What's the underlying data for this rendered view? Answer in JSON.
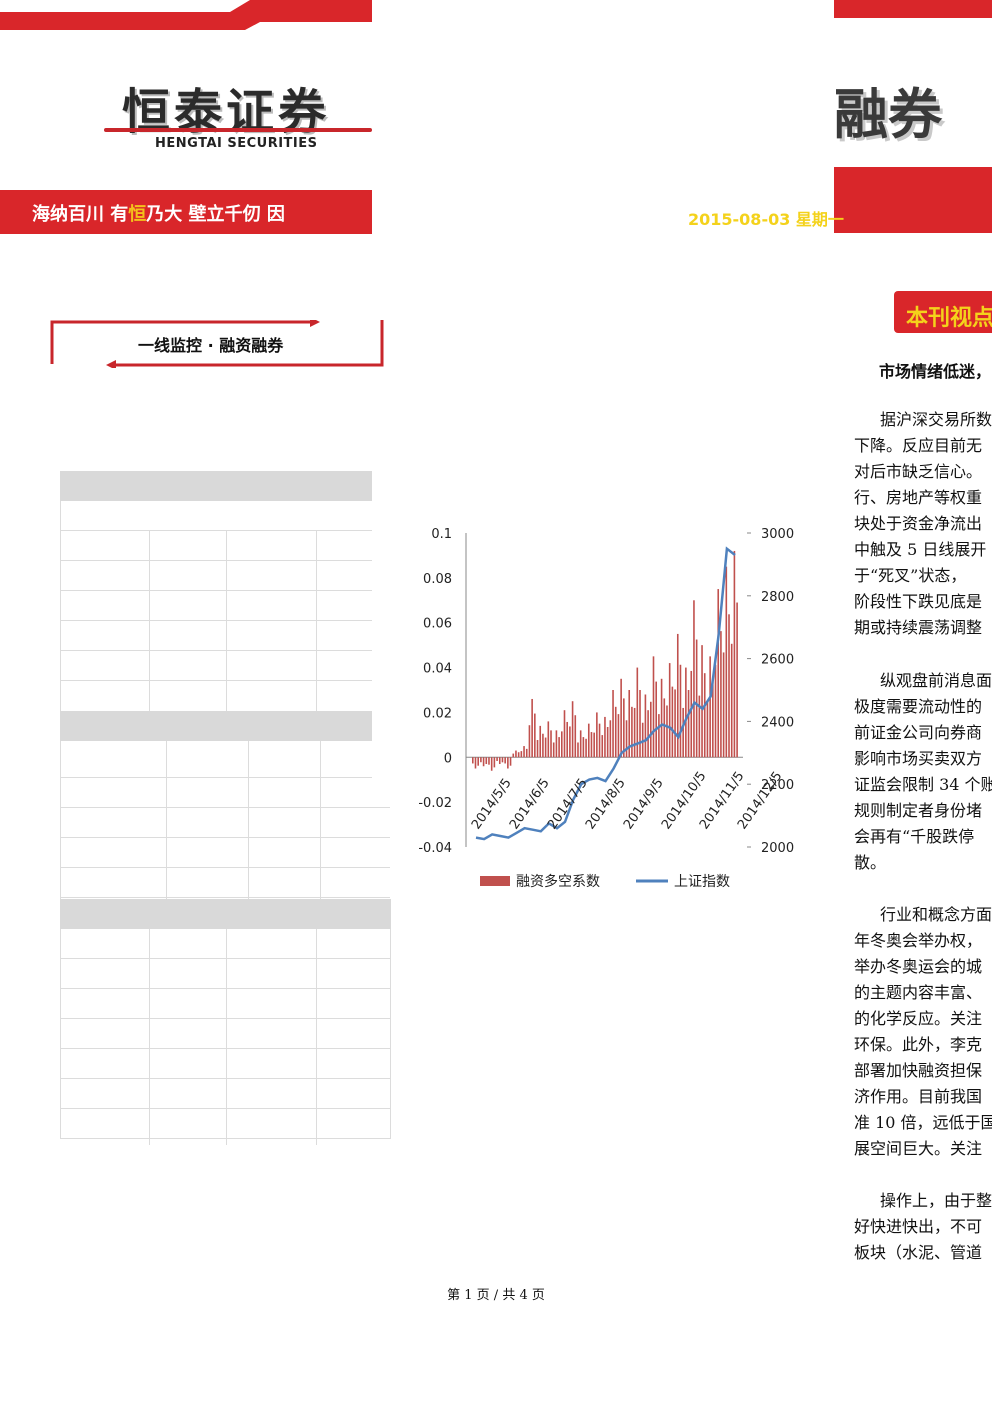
{
  "header": {
    "logo_cn": "恒泰证券",
    "logo_en": "HENGTAI SECURITIES",
    "slogan_a": "海纳百川  有",
    "slogan_highlight": "恒",
    "slogan_b": "乃大    壁立千仞  因",
    "title_fragment": "融券",
    "date": "2015-08-03 星期一"
  },
  "section": {
    "title": "一线监控 · 融资融券"
  },
  "chart_data": {
    "type": "bar+line",
    "legend": [
      "融资多空系数",
      "上证指数"
    ],
    "y_left_ticks": [
      "0.1",
      "0.08",
      "0.06",
      "0.04",
      "0.02",
      "0",
      "-0.02",
      "-0.04"
    ],
    "y_right_ticks": [
      "3000",
      "2800",
      "2600",
      "2400",
      "2200",
      "2000"
    ],
    "x_ticks": [
      "2014/5/5",
      "2014/6/5",
      "2014/7/5",
      "2014/8/5",
      "2014/9/5",
      "2014/10/5",
      "2014/11/5",
      "2014/12/5"
    ],
    "ylim_left": [
      -0.04,
      0.1
    ],
    "ylim_right": [
      2000,
      3000
    ],
    "series": [
      {
        "name": "融资多空系数",
        "x": [
          "2014/5/5",
          "2014/5/12",
          "2014/5/19",
          "2014/5/26",
          "2014/6/2",
          "2014/6/9",
          "2014/6/16",
          "2014/6/23",
          "2014/6/30",
          "2014/7/7",
          "2014/7/14",
          "2014/7/21",
          "2014/7/28",
          "2014/8/4",
          "2014/8/11",
          "2014/8/18",
          "2014/8/25",
          "2014/9/1",
          "2014/9/8",
          "2014/9/15",
          "2014/9/22",
          "2014/9/29",
          "2014/10/6",
          "2014/10/13",
          "2014/10/20",
          "2014/10/27",
          "2014/11/3",
          "2014/11/10",
          "2014/11/17",
          "2014/11/24",
          "2014/12/1",
          "2014/12/8",
          "2014/12/15"
        ],
        "values": [
          -0.005,
          -0.004,
          -0.006,
          -0.003,
          -0.005,
          0.003,
          0.005,
          0.026,
          0.014,
          0.016,
          0.012,
          0.021,
          0.025,
          0.012,
          0.015,
          0.02,
          0.018,
          0.03,
          0.035,
          0.03,
          0.04,
          0.028,
          0.045,
          0.035,
          0.042,
          0.055,
          0.04,
          0.07,
          0.05,
          0.045,
          0.075,
          0.085,
          0.092
        ]
      },
      {
        "name": "上证指数",
        "x": [
          "2014/5/5",
          "2014/5/12",
          "2014/5/19",
          "2014/5/26",
          "2014/6/2",
          "2014/6/9",
          "2014/6/16",
          "2014/6/23",
          "2014/6/30",
          "2014/7/7",
          "2014/7/14",
          "2014/7/21",
          "2014/7/28",
          "2014/8/4",
          "2014/8/11",
          "2014/8/18",
          "2014/8/25",
          "2014/9/1",
          "2014/9/8",
          "2014/9/15",
          "2014/9/22",
          "2014/9/29",
          "2014/10/6",
          "2014/10/13",
          "2014/10/20",
          "2014/10/27",
          "2014/11/3",
          "2014/11/10",
          "2014/11/17",
          "2014/11/24",
          "2014/12/1",
          "2014/12/8",
          "2014/12/15"
        ],
        "values": [
          2030,
          2025,
          2040,
          2035,
          2030,
          2045,
          2060,
          2055,
          2050,
          2075,
          2060,
          2080,
          2150,
          2200,
          2215,
          2220,
          2210,
          2250,
          2300,
          2320,
          2330,
          2340,
          2370,
          2390,
          2380,
          2350,
          2410,
          2460,
          2440,
          2480,
          2680,
          2950,
          2930
        ]
      }
    ]
  },
  "viewpoint": {
    "label": "本刊视点",
    "headline": "市场情绪低迷，"
  },
  "paragraphs": [
    [
      "据沪深交易所数",
      "下降。反应目前无",
      "对后市缺乏信心。",
      "行、房地产等权重",
      "块处于资金净流出",
      "中触及 5 日线展开",
      "于“死叉”状态，",
      "阶段性下跌见底是",
      "期或持续震荡调整"
    ],
    [
      "纵观盘前消息面",
      "极度需要流动性的",
      "前证金公司向券商",
      "影响市场买卖双方",
      "证监会限制 34 个账",
      "规则制定者身份堵",
      "会再有“千股跌停",
      "散。"
    ],
    [
      "行业和概念方面",
      "年冬奥会举办权，",
      "举办冬奥运会的城",
      "的主题内容丰富、",
      "的化学反应。关注",
      "环保。此外，李克",
      "部署加快融资担保",
      "济作用。目前我国",
      "准 10 倍，远低于国",
      "展空间巨大。关注"
    ],
    [
      "操作上，由于整",
      "好快进快出，不可",
      "板块（水泥、管道"
    ]
  ],
  "footer": {
    "text": "第 1 页 / 共 4 页"
  }
}
